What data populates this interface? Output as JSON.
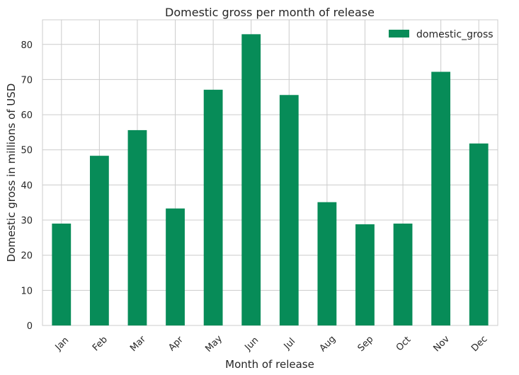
{
  "chart_data": {
    "type": "bar",
    "title": "Domestic gross per month of release",
    "xlabel": "Month of release",
    "ylabel": "Domestic gross in millions of USD",
    "categories": [
      "Jan",
      "Feb",
      "Mar",
      "Apr",
      "May",
      "Jun",
      "Jul",
      "Aug",
      "Sep",
      "Oct",
      "Nov",
      "Dec"
    ],
    "series": [
      {
        "name": "domestic_gross",
        "values": [
          29.0,
          48.3,
          55.6,
          33.3,
          67.1,
          82.9,
          65.6,
          35.1,
          28.8,
          29.0,
          72.2,
          51.8
        ]
      }
    ],
    "ylim": [
      0,
      87
    ],
    "yticks": [
      0,
      10,
      20,
      30,
      40,
      50,
      60,
      70,
      80
    ],
    "grid": true,
    "legend_position": "top-right",
    "bar_color": "#078C58"
  }
}
